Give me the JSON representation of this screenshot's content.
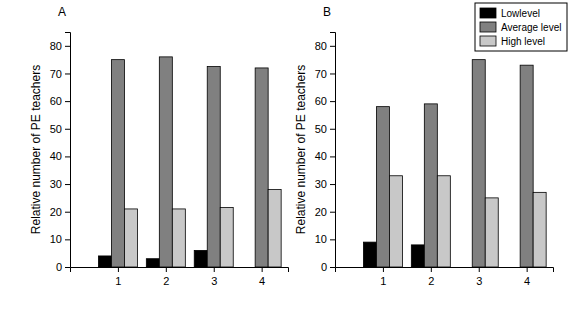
{
  "chart_data": [
    {
      "type": "bar",
      "title": "A",
      "y_label": "Relative number of PE teachers",
      "categories": [
        "1",
        "2",
        "3",
        "4"
      ],
      "series": [
        {
          "name": "Lowlevel",
          "color": "#000000",
          "values": [
            4,
            3,
            6,
            0
          ]
        },
        {
          "name": "Average level",
          "color": "#808080",
          "values": [
            75,
            76,
            72.5,
            72
          ]
        },
        {
          "name": "High level",
          "color": "#c8c8c8",
          "values": [
            21,
            21,
            21.5,
            28
          ]
        }
      ],
      "ylim": [
        0,
        85
      ],
      "yticks": [
        0,
        10,
        20,
        30,
        40,
        50,
        60,
        70,
        80
      ],
      "grid": false
    },
    {
      "type": "bar",
      "title": "B",
      "y_label": "Relative number of PE teachers",
      "categories": [
        "1",
        "2",
        "3",
        "4"
      ],
      "series": [
        {
          "name": "Lowlevel",
          "color": "#000000",
          "values": [
            9,
            8,
            0,
            0
          ]
        },
        {
          "name": "Average level",
          "color": "#808080",
          "values": [
            58,
            59,
            75,
            73
          ]
        },
        {
          "name": "High level",
          "color": "#c8c8c8",
          "values": [
            33,
            33,
            25,
            27
          ]
        }
      ],
      "ylim": [
        0,
        85
      ],
      "yticks": [
        0,
        10,
        20,
        30,
        40,
        50,
        60,
        70,
        80
      ],
      "grid": false,
      "legend": "upper right"
    }
  ]
}
